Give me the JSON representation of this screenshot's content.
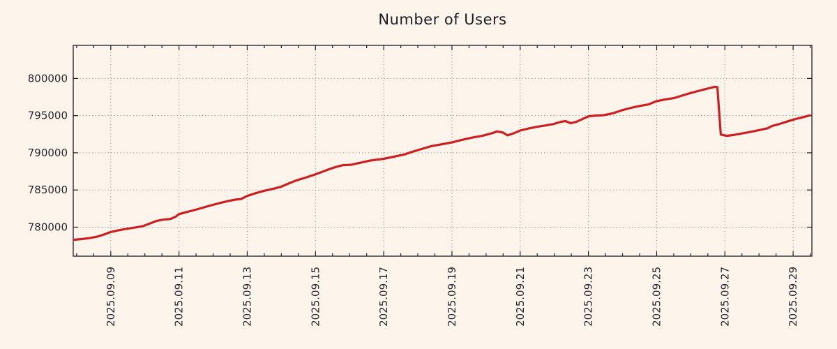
{
  "title": "Number of Users",
  "colors": {
    "background": "#fdf5ec",
    "line": "#cc2020",
    "grid": "#a5a19a",
    "axis": "#1c1c26",
    "text": "#26262e"
  },
  "chart_data": {
    "type": "line",
    "title": "Number of Users",
    "grid": true,
    "legend": "none",
    "x_axis": {
      "unit": "date",
      "epoch": "2025.09.08",
      "range_days": [
        -0.1,
        21.55
      ],
      "minor_tick_interval_days": 0.5,
      "tick_label_rotation": "vertical",
      "major_ticks": [
        {
          "t": 1,
          "label": "2025.09.09"
        },
        {
          "t": 3,
          "label": "2025.09.11"
        },
        {
          "t": 5,
          "label": "2025.09.13"
        },
        {
          "t": 7,
          "label": "2025.09.15"
        },
        {
          "t": 9,
          "label": "2025.09.17"
        },
        {
          "t": 11,
          "label": "2025.09.19"
        },
        {
          "t": 13,
          "label": "2025.09.21"
        },
        {
          "t": 15,
          "label": "2025.09.23"
        },
        {
          "t": 17,
          "label": "2025.09.25"
        },
        {
          "t": 19,
          "label": "2025.09.27"
        },
        {
          "t": 21,
          "label": "2025.09.29"
        }
      ]
    },
    "y_axis": {
      "range": [
        776100,
        804450
      ],
      "major_ticks": [
        780000,
        785000,
        790000,
        795000,
        800000
      ]
    },
    "series": [
      {
        "name": "Number of Users",
        "color": "#cc2020",
        "points": [
          [
            -0.1,
            778300
          ],
          [
            0.15,
            778400
          ],
          [
            0.4,
            778550
          ],
          [
            0.62,
            778750
          ],
          [
            0.82,
            779050
          ],
          [
            1.0,
            779350
          ],
          [
            1.25,
            779600
          ],
          [
            1.5,
            779800
          ],
          [
            1.75,
            779980
          ],
          [
            1.95,
            780150
          ],
          [
            2.15,
            780500
          ],
          [
            2.35,
            780850
          ],
          [
            2.55,
            781020
          ],
          [
            2.75,
            781100
          ],
          [
            2.9,
            781400
          ],
          [
            3.0,
            781750
          ],
          [
            3.2,
            782000
          ],
          [
            3.45,
            782300
          ],
          [
            3.7,
            782620
          ],
          [
            3.95,
            782950
          ],
          [
            4.2,
            783250
          ],
          [
            4.45,
            783530
          ],
          [
            4.65,
            783700
          ],
          [
            4.82,
            783790
          ],
          [
            5.0,
            784200
          ],
          [
            5.25,
            784580
          ],
          [
            5.5,
            784900
          ],
          [
            5.75,
            785150
          ],
          [
            6.0,
            785450
          ],
          [
            6.2,
            785850
          ],
          [
            6.45,
            786300
          ],
          [
            6.7,
            786650
          ],
          [
            7.0,
            787100
          ],
          [
            7.2,
            787450
          ],
          [
            7.4,
            787800
          ],
          [
            7.6,
            788100
          ],
          [
            7.8,
            788330
          ],
          [
            8.05,
            788400
          ],
          [
            8.3,
            788650
          ],
          [
            8.6,
            788950
          ],
          [
            9.0,
            789200
          ],
          [
            9.3,
            789480
          ],
          [
            9.6,
            789780
          ],
          [
            9.85,
            790150
          ],
          [
            10.1,
            790500
          ],
          [
            10.4,
            790900
          ],
          [
            10.7,
            791150
          ],
          [
            11.0,
            791400
          ],
          [
            11.3,
            791750
          ],
          [
            11.6,
            792050
          ],
          [
            11.9,
            792300
          ],
          [
            12.15,
            792600
          ],
          [
            12.33,
            792880
          ],
          [
            12.5,
            792720
          ],
          [
            12.63,
            792350
          ],
          [
            12.8,
            792600
          ],
          [
            13.0,
            793000
          ],
          [
            13.25,
            793280
          ],
          [
            13.5,
            793500
          ],
          [
            13.75,
            793680
          ],
          [
            14.0,
            793900
          ],
          [
            14.2,
            794180
          ],
          [
            14.33,
            794260
          ],
          [
            14.48,
            793980
          ],
          [
            14.65,
            794180
          ],
          [
            14.85,
            794600
          ],
          [
            15.0,
            794900
          ],
          [
            15.2,
            795010
          ],
          [
            15.45,
            795060
          ],
          [
            15.7,
            795300
          ],
          [
            16.0,
            795750
          ],
          [
            16.25,
            796050
          ],
          [
            16.5,
            796300
          ],
          [
            16.75,
            796500
          ],
          [
            17.0,
            796950
          ],
          [
            17.25,
            797180
          ],
          [
            17.5,
            797350
          ],
          [
            17.75,
            797700
          ],
          [
            18.0,
            798050
          ],
          [
            18.25,
            798350
          ],
          [
            18.5,
            798650
          ],
          [
            18.7,
            798870
          ],
          [
            18.78,
            798840
          ],
          [
            18.88,
            792450
          ],
          [
            19.05,
            792280
          ],
          [
            19.25,
            792400
          ],
          [
            19.5,
            792600
          ],
          [
            19.75,
            792820
          ],
          [
            20.0,
            793050
          ],
          [
            20.25,
            793300
          ],
          [
            20.38,
            793600
          ],
          [
            20.6,
            793880
          ],
          [
            20.85,
            794250
          ],
          [
            21.1,
            794580
          ],
          [
            21.3,
            794800
          ],
          [
            21.51,
            795050
          ]
        ]
      }
    ]
  }
}
